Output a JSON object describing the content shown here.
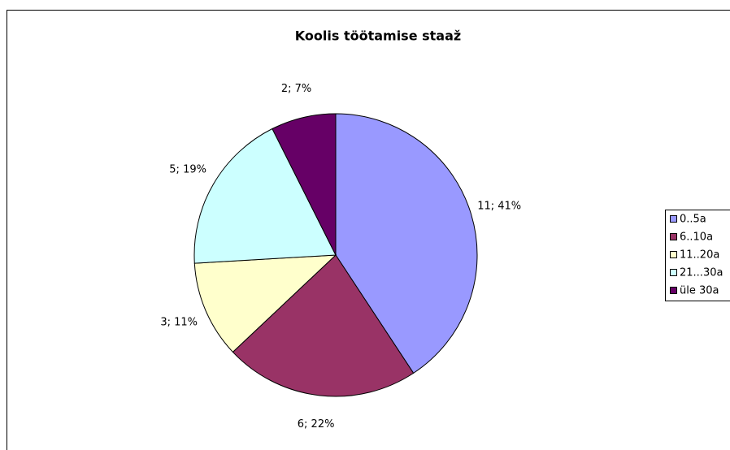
{
  "chart_data": {
    "type": "pie",
    "title": "Koolis töötamise staaž",
    "categories": [
      "0..5a",
      "6..10a",
      "11..20a",
      "21...30a",
      "üle 30a"
    ],
    "values": [
      11,
      6,
      3,
      5,
      2
    ],
    "value_labels": [
      "11; 41%",
      "6; 22%",
      "3; 11%",
      "5; 19%",
      "2; 7%"
    ],
    "colors": [
      "#9999ff",
      "#993366",
      "#ffffcc",
      "#ccffff",
      "#660066"
    ],
    "legend": "right"
  }
}
